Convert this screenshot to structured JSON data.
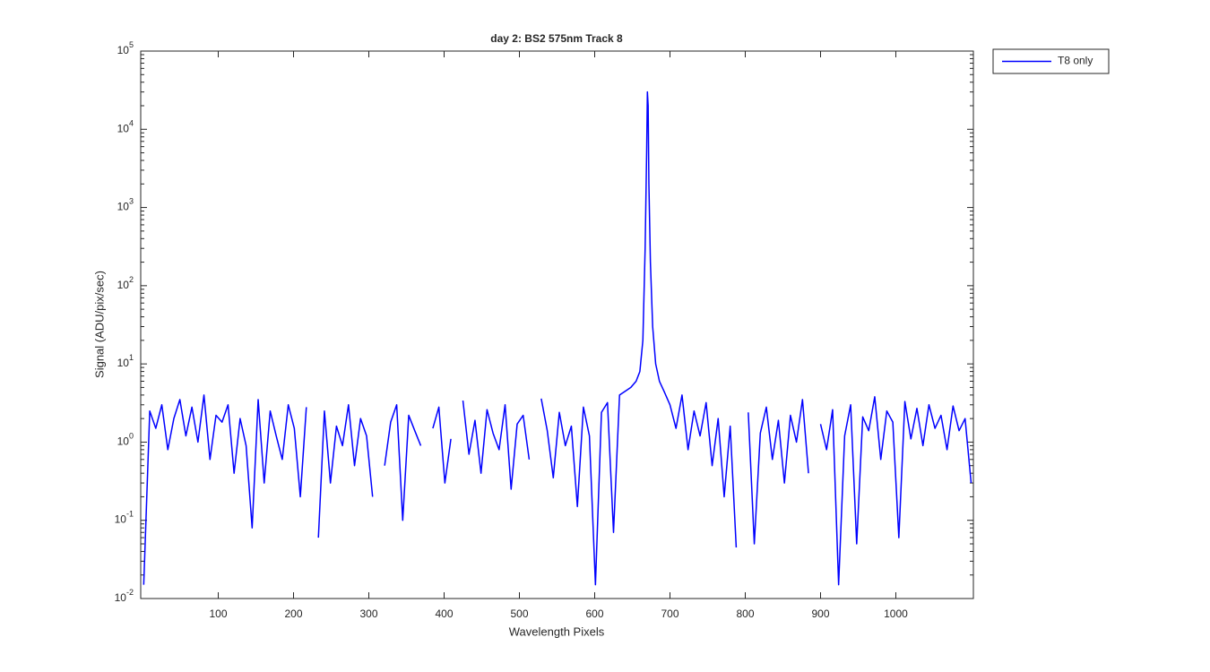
{
  "chart_data": {
    "type": "line",
    "title": "day 2: BS2  575nm  Track 8",
    "x_label": "Wavelength Pixels",
    "y_label": "Signal (ADU/pix/sec)",
    "log_y": true,
    "legend": "outside-top-right",
    "xlim": [
      -3,
      1103
    ],
    "xticks": [
      100,
      200,
      300,
      400,
      500,
      600,
      700,
      800,
      900,
      1000
    ],
    "ylim": [
      0.01,
      100000
    ],
    "yticks": [
      {
        "value": 0.01,
        "label": "10",
        "exponent": "-2"
      },
      {
        "value": 0.1,
        "label": "10",
        "exponent": "-1"
      },
      {
        "value": 1,
        "label": "10",
        "exponent": "0"
      },
      {
        "value": 10,
        "label": "10",
        "exponent": "1"
      },
      {
        "value": 100,
        "label": "10",
        "exponent": "2"
      },
      {
        "value": 1000,
        "label": "10",
        "exponent": "3"
      },
      {
        "value": 10000,
        "label": "10",
        "exponent": "4"
      },
      {
        "value": 100000,
        "label": "10",
        "exponent": "5"
      }
    ],
    "x": [
      1,
      9,
      17,
      25,
      33,
      41,
      49,
      57,
      65,
      73,
      81,
      89,
      97,
      105,
      113,
      121,
      129,
      137,
      145,
      153,
      161,
      169,
      177,
      185,
      193,
      201,
      209,
      217,
      225,
      233,
      241,
      249,
      257,
      265,
      273,
      281,
      289,
      297,
      305,
      313,
      321,
      329,
      337,
      345,
      353,
      361,
      369,
      377,
      385,
      393,
      401,
      409,
      417,
      425,
      433,
      441,
      449,
      457,
      465,
      473,
      481,
      489,
      497,
      505,
      513,
      521,
      529,
      537,
      545,
      553,
      561,
      569,
      577,
      585,
      593,
      601,
      609,
      617,
      625,
      633,
      641,
      648,
      655,
      660,
      664,
      667,
      669,
      670,
      671,
      672,
      674,
      677,
      681,
      686,
      692,
      700,
      708,
      716,
      724,
      732,
      740,
      748,
      756,
      764,
      772,
      780,
      788,
      796,
      804,
      812,
      820,
      828,
      836,
      844,
      852,
      860,
      868,
      876,
      884,
      892,
      900,
      908,
      916,
      924,
      932,
      940,
      948,
      956,
      964,
      972,
      980,
      988,
      996,
      1004,
      1012,
      1020,
      1028,
      1036,
      1044,
      1052,
      1060,
      1068,
      1076,
      1084,
      1092,
      1100
    ],
    "series": [
      {
        "name": "T8 only",
        "color": "#0000ff",
        "values": [
          0.015,
          2.5,
          1.5,
          3,
          0.8,
          2,
          3.5,
          1.2,
          2.8,
          1,
          4,
          0.6,
          2.2,
          1.8,
          3,
          0.4,
          2,
          0.9,
          0.08,
          3.5,
          0.3,
          2.5,
          1.2,
          0.6,
          3,
          1.5,
          0.2,
          2.8,
          null,
          0.06,
          2.5,
          0.3,
          1.6,
          0.9,
          3,
          0.5,
          2,
          1.2,
          0.2,
          null,
          0.5,
          1.8,
          3,
          0.1,
          2.2,
          1.4,
          0.9,
          null,
          1.5,
          2.8,
          0.3,
          1.1,
          null,
          3.4,
          0.7,
          1.9,
          0.4,
          2.6,
          1.3,
          0.8,
          3,
          0.25,
          1.7,
          2.2,
          0.6,
          null,
          3.6,
          1.4,
          0.35,
          2.4,
          0.9,
          1.6,
          0.15,
          2.8,
          1.2,
          0.015,
          2.4,
          3.2,
          0.07,
          4,
          4.5,
          5,
          6,
          8,
          20,
          300,
          5000,
          30000,
          20000,
          2000,
          200,
          30,
          10,
          6,
          4.5,
          3,
          1.5,
          4,
          0.8,
          2.5,
          1.2,
          3.2,
          0.5,
          2,
          0.2,
          1.6,
          0.045,
          null,
          2.4,
          0.05,
          1.3,
          2.8,
          0.6,
          1.9,
          0.3,
          2.2,
          1,
          3.5,
          0.4,
          null,
          1.7,
          0.8,
          2.6,
          0.015,
          1.2,
          3,
          0.05,
          2.1,
          1.4,
          3.8,
          0.6,
          2.5,
          1.8,
          0.06,
          3.3,
          1.1,
          2.7,
          0.9,
          3,
          1.5,
          2.2,
          0.8,
          2.9,
          1.4,
          2,
          0.3
        ]
      }
    ]
  }
}
